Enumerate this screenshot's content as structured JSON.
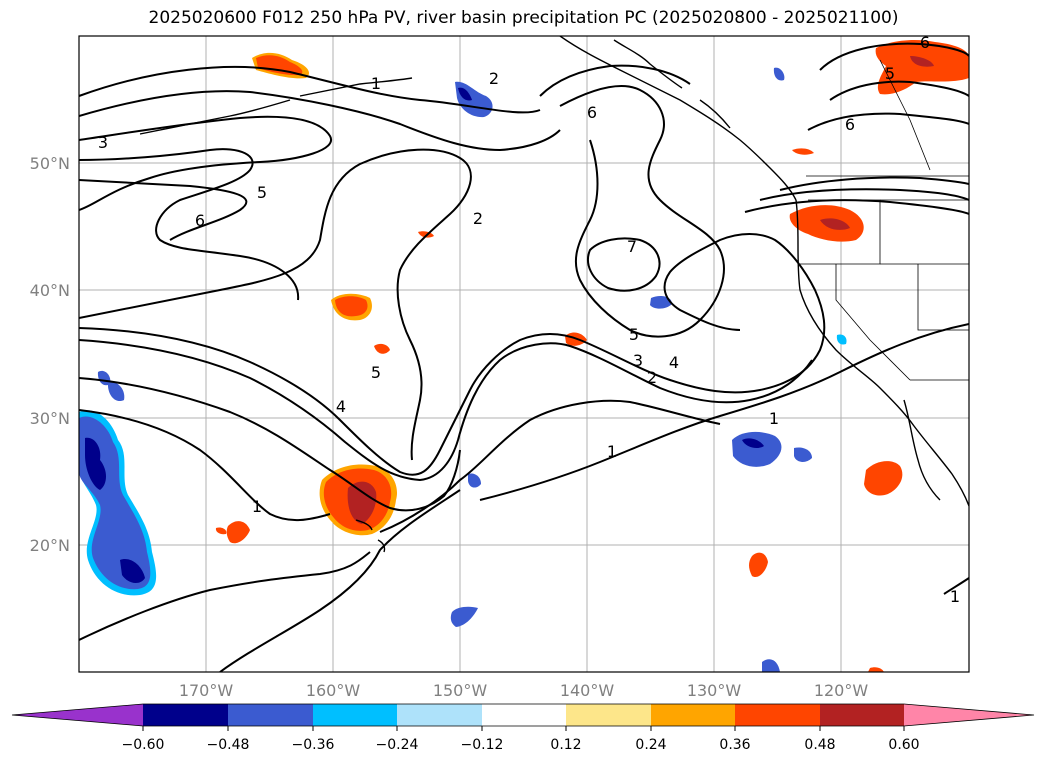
{
  "title": "2025020600 F012 250 hPa PV, river basin precipitation PC (2025020800 - 2025021100)",
  "map": {
    "lat_labels": [
      "50°N",
      "40°N",
      "30°N",
      "20°N"
    ],
    "lon_labels": [
      "170°W",
      "160°W",
      "150°W",
      "140°W",
      "130°W",
      "120°W"
    ],
    "gridlines": true
  },
  "contours": {
    "variable": "250 hPa PV",
    "levels_labeled": [
      "1",
      "2",
      "3",
      "4",
      "5",
      "6",
      "7"
    ],
    "labels": [
      {
        "text": "1"
      },
      {
        "text": "2"
      },
      {
        "text": "6"
      },
      {
        "text": "6"
      },
      {
        "text": "5"
      },
      {
        "text": "6"
      },
      {
        "text": "3"
      },
      {
        "text": "5"
      },
      {
        "text": "6"
      },
      {
        "text": "2"
      },
      {
        "text": "7"
      },
      {
        "text": "5"
      },
      {
        "text": "3"
      },
      {
        "text": "4"
      },
      {
        "text": "2"
      },
      {
        "text": "5"
      },
      {
        "text": "4"
      },
      {
        "text": "1"
      },
      {
        "text": "1"
      },
      {
        "text": "1"
      },
      {
        "text": "1"
      }
    ]
  },
  "colorbar": {
    "tick_labels": [
      "−0.60",
      "−0.48",
      "−0.36",
      "−0.24",
      "−0.12",
      "0.12",
      "0.24",
      "0.36",
      "0.48",
      "0.60"
    ],
    "colors": [
      "#9932cc",
      "#00008b",
      "#3b5bd0",
      "#00bfff",
      "#aee2fa",
      "#ffffff",
      "#fde68a",
      "#ffa500",
      "#ff4500",
      "#b22222",
      "#ff85a8"
    ],
    "extend": "both"
  }
}
